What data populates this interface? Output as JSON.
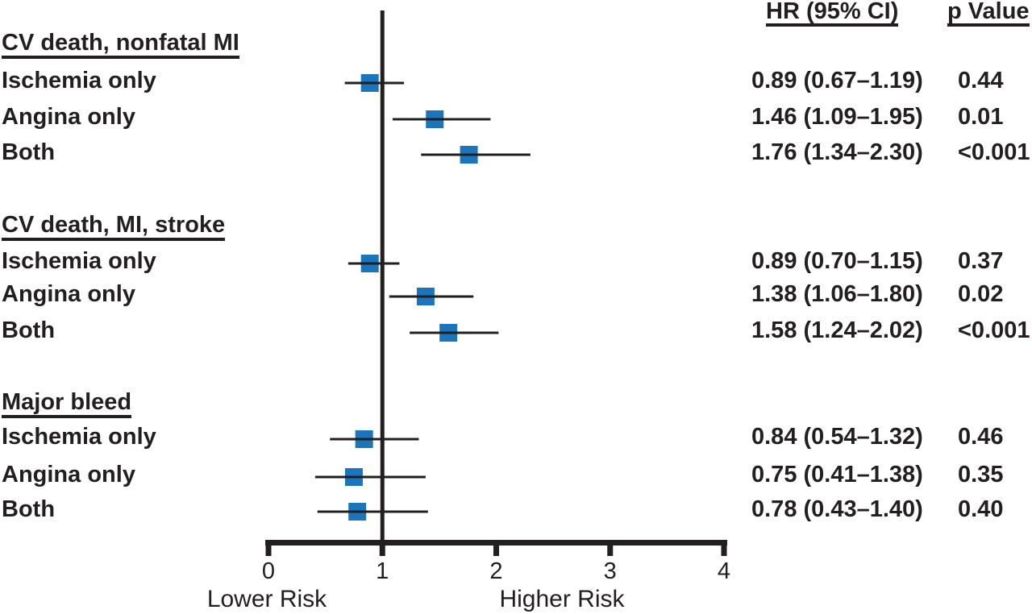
{
  "chart_data": {
    "type": "forest",
    "columns": {
      "hr_header": "HR (95% CI)",
      "p_header": "p Value"
    },
    "axis": {
      "min": 0,
      "max": 4,
      "ticks": [
        0,
        1,
        2,
        3,
        4
      ],
      "ref_line": 1,
      "lower_label": "Lower Risk",
      "higher_label": "Higher Risk"
    },
    "groups": [
      {
        "label": "CV death, nonfatal MI",
        "rows": [
          {
            "label": "Ischemia only",
            "hr": 0.89,
            "ci_low": 0.67,
            "ci_high": 1.19,
            "hr_text": "0.89 (0.67–1.19)",
            "p_text": "0.44"
          },
          {
            "label": "Angina only",
            "hr": 1.46,
            "ci_low": 1.09,
            "ci_high": 1.95,
            "hr_text": "1.46 (1.09–1.95)",
            "p_text": "0.01"
          },
          {
            "label": "Both",
            "hr": 1.76,
            "ci_low": 1.34,
            "ci_high": 2.3,
            "hr_text": "1.76 (1.34–2.30)",
            "p_text": "<0.001"
          }
        ]
      },
      {
        "label": "CV death, MI, stroke",
        "rows": [
          {
            "label": "Ischemia only",
            "hr": 0.89,
            "ci_low": 0.7,
            "ci_high": 1.15,
            "hr_text": "0.89 (0.70–1.15)",
            "p_text": "0.37"
          },
          {
            "label": "Angina only",
            "hr": 1.38,
            "ci_low": 1.06,
            "ci_high": 1.8,
            "hr_text": "1.38 (1.06–1.80)",
            "p_text": "0.02"
          },
          {
            "label": "Both",
            "hr": 1.58,
            "ci_low": 1.24,
            "ci_high": 2.02,
            "hr_text": "1.58 (1.24–2.02)",
            "p_text": "<0.001"
          }
        ]
      },
      {
        "label": "Major bleed",
        "rows": [
          {
            "label": "Ischemia only",
            "hr": 0.84,
            "ci_low": 0.54,
            "ci_high": 1.32,
            "hr_text": "0.84 (0.54–1.32)",
            "p_text": "0.46"
          },
          {
            "label": "Angina only",
            "hr": 0.75,
            "ci_low": 0.41,
            "ci_high": 1.38,
            "hr_text": "0.75 (0.41–1.38)",
            "p_text": "0.35"
          },
          {
            "label": "Both",
            "hr": 0.78,
            "ci_low": 0.43,
            "ci_high": 1.4,
            "hr_text": "0.78 (0.43–1.40)",
            "p_text": "0.40"
          }
        ]
      }
    ],
    "colors": {
      "marker": "#1B75BC",
      "line": "#231F20",
      "text": "#231F20"
    }
  }
}
